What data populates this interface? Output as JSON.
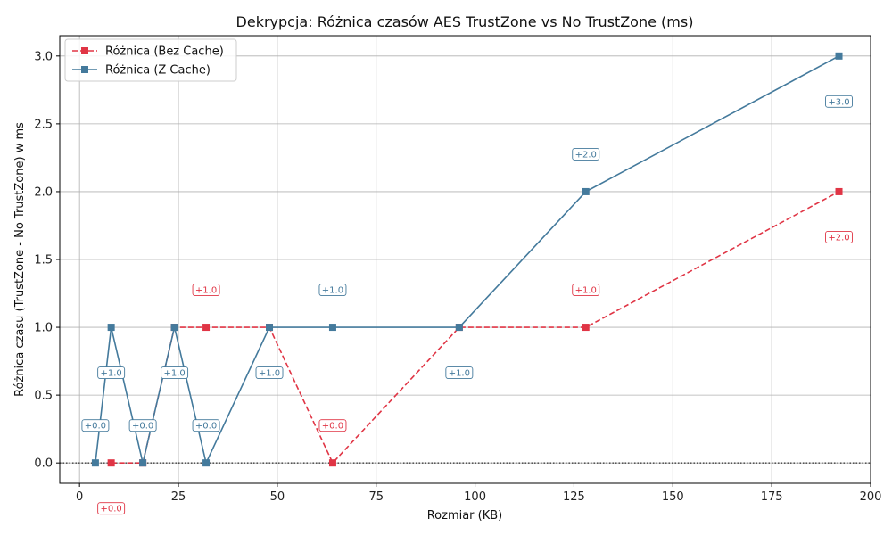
{
  "chart_data": {
    "type": "line",
    "title": "Dekrypcja: Różnica czasów AES TrustZone vs No TrustZone (ms)",
    "xlabel": "Rozmiar (KB)",
    "ylabel": "Różnica czasu (TrustZone - No TrustZone) w ms",
    "xlim": [
      -5,
      200
    ],
    "ylim": [
      -0.15,
      3.15
    ],
    "x_ticks": [
      0,
      25,
      50,
      75,
      100,
      125,
      150,
      175,
      200
    ],
    "y_ticks": [
      0.0,
      0.5,
      1.0,
      1.5,
      2.0,
      2.5,
      3.0
    ],
    "x_tick_labels": [
      "0",
      "25",
      "50",
      "75",
      "100",
      "125",
      "150",
      "175",
      "200"
    ],
    "y_tick_labels": [
      "0.0",
      "0.5",
      "1.0",
      "1.5",
      "2.0",
      "2.5",
      "3.0"
    ],
    "grid": true,
    "zero_line": true,
    "legend_position": "top-left",
    "series": [
      {
        "name": "Różnica (Bez Cache)",
        "color": "#e03545",
        "line_style": "dashed",
        "marker": "square",
        "x": [
          8,
          16,
          24,
          32,
          48,
          64,
          96,
          128,
          192
        ],
        "y": [
          0,
          0,
          1,
          1,
          1,
          0,
          1,
          1,
          2
        ],
        "annotations": [
          {
            "x": 8,
            "y": 0,
            "label": "+0.0",
            "placement": "below"
          },
          {
            "x": 32,
            "y": 1,
            "label": "+1.0",
            "placement": "above"
          },
          {
            "x": 64,
            "y": 0,
            "label": "+0.0",
            "placement": "above"
          },
          {
            "x": 128,
            "y": 1,
            "label": "+1.0",
            "placement": "above"
          },
          {
            "x": 192,
            "y": 2,
            "label": "+2.0",
            "placement": "below"
          }
        ]
      },
      {
        "name": "Różnica (Z Cache)",
        "color": "#447a9c",
        "line_style": "solid",
        "marker": "square",
        "x": [
          4,
          8,
          16,
          24,
          32,
          48,
          64,
          96,
          128,
          192
        ],
        "y": [
          0,
          1,
          0,
          1,
          0,
          1,
          1,
          1,
          2,
          3
        ],
        "annotations": [
          {
            "x": 4,
            "y": 0,
            "label": "+0.0",
            "placement": "above"
          },
          {
            "x": 8,
            "y": 1,
            "label": "+1.0",
            "placement": "below"
          },
          {
            "x": 16,
            "y": 0,
            "label": "+0.0",
            "placement": "above"
          },
          {
            "x": 24,
            "y": 1,
            "label": "+1.0",
            "placement": "below"
          },
          {
            "x": 32,
            "y": 0,
            "label": "+0.0",
            "placement": "above"
          },
          {
            "x": 48,
            "y": 1,
            "label": "+1.0",
            "placement": "below"
          },
          {
            "x": 64,
            "y": 1,
            "label": "+1.0",
            "placement": "above"
          },
          {
            "x": 96,
            "y": 1,
            "label": "+1.0",
            "placement": "below"
          },
          {
            "x": 128,
            "y": 2,
            "label": "+2.0",
            "placement": "above"
          },
          {
            "x": 192,
            "y": 3,
            "label": "+3.0",
            "placement": "below"
          }
        ]
      }
    ]
  }
}
